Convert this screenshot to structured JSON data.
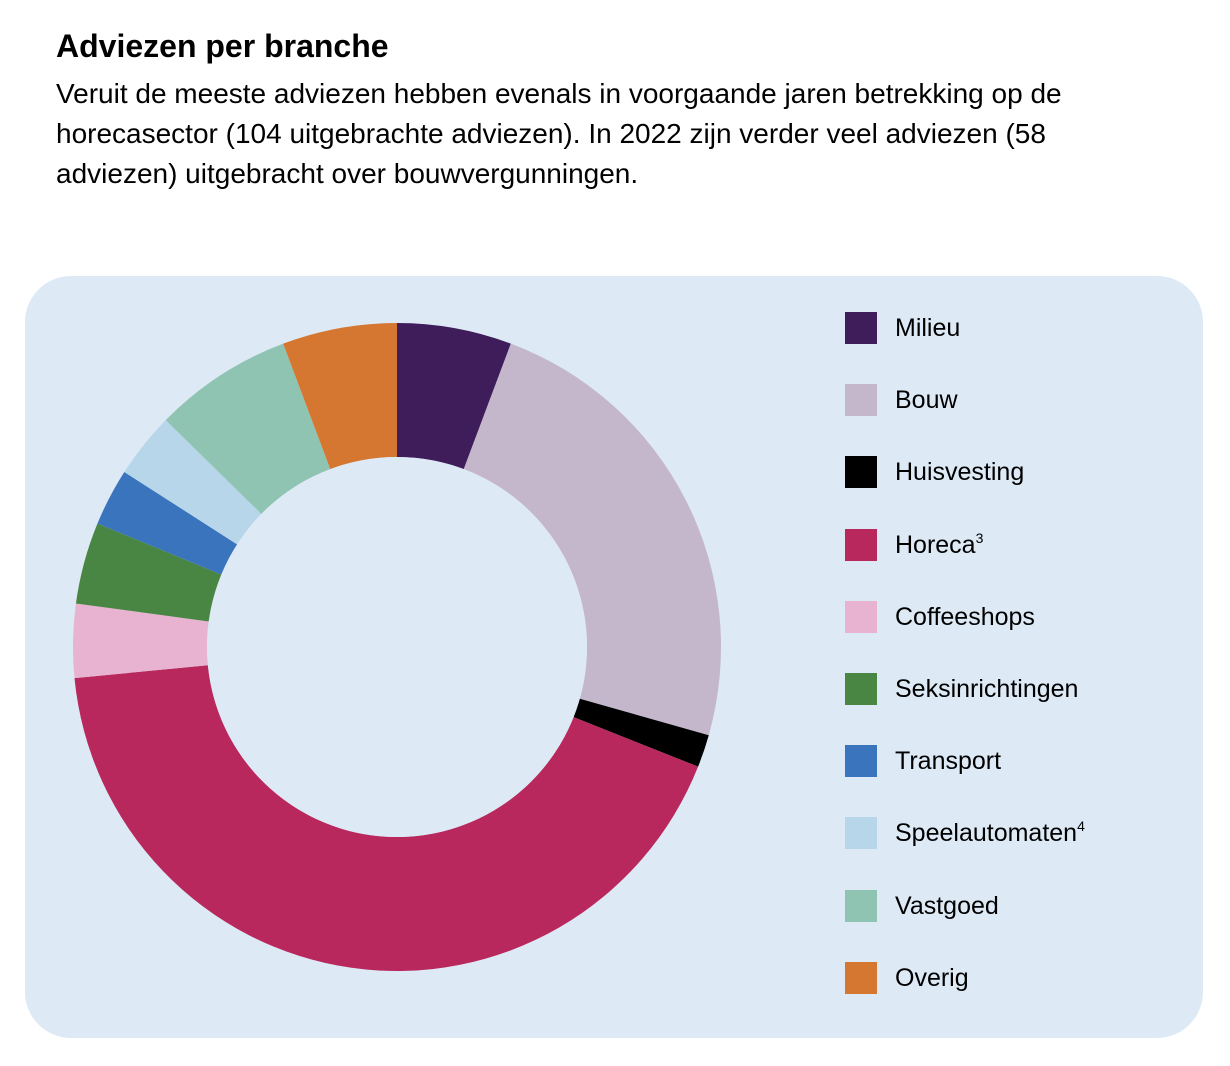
{
  "heading": {
    "title": "Adviezen per branche",
    "intro": "Veruit de meeste adviezen hebben evenals in voorgaande jaren betrekking op de horecasector (104 uitgebrachte adviezen). In 2022 zijn verder veel adviezen (58 adviezen) uitgebracht over bouwvergunningen."
  },
  "colors": {
    "panel_background": "#dde9f5",
    "hole": "#dde9f5"
  },
  "chart_data": {
    "type": "pie",
    "variant": "donut",
    "title": "",
    "legend_position": "right",
    "start": "top",
    "direction": "clockwise",
    "categories": [
      "Milieu",
      "Bouw",
      "Huisvesting",
      "Horeca",
      "Coffeeshops",
      "Seksinrichtingen",
      "Transport",
      "Speelautomaten",
      "Vastgoed",
      "Overig"
    ],
    "footnotes": [
      "",
      "",
      "",
      "3",
      "",
      "",
      "",
      "4",
      "",
      ""
    ],
    "colors": [
      "#3f1c5a",
      "#c4b7cc",
      "#000000",
      "#b9285c",
      "#e8b3d1",
      "#4a8643",
      "#3a74bc",
      "#b8d6ea",
      "#90c4b2",
      "#d67731"
    ],
    "values": [
      14,
      58,
      4,
      104,
      9,
      10,
      7,
      8,
      17,
      14
    ]
  }
}
